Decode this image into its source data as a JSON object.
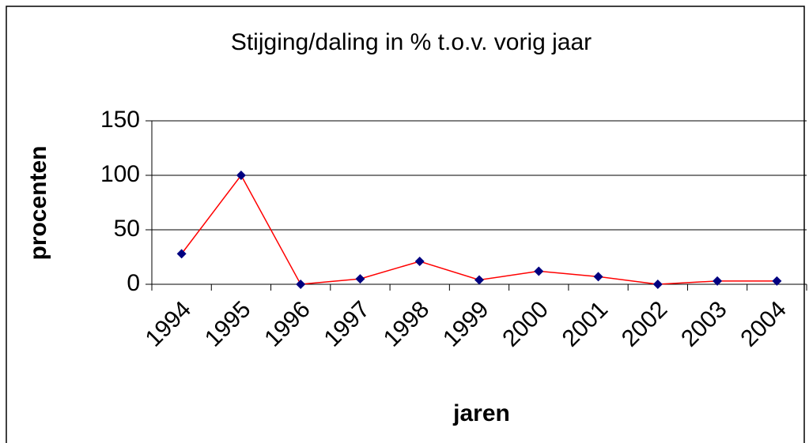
{
  "chart_data": {
    "type": "line",
    "title": "Stijging/daling in % t.o.v. vorig jaar",
    "x_label": "jaren",
    "y_label": "procenten",
    "categories": [
      "1994",
      "1995",
      "1996",
      "1997",
      "1998",
      "1999",
      "2000",
      "2001",
      "2002",
      "2003",
      "2004"
    ],
    "values": [
      28,
      100,
      0,
      5,
      21,
      4,
      12,
      7,
      0,
      3,
      3
    ],
    "color": "#ff0000",
    "marker_color": "#000080",
    "ylim": [
      0,
      150
    ],
    "yticks": [
      0,
      50,
      100,
      150
    ],
    "grid": true
  }
}
